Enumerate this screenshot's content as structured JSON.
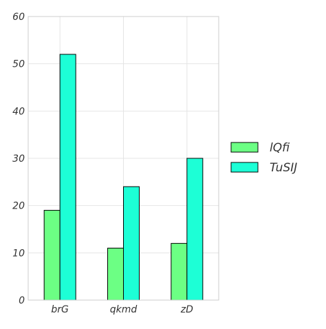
{
  "chart_data": {
    "type": "bar",
    "title": "",
    "xlabel": "",
    "ylabel": "",
    "categories": [
      "brG",
      "qkmd",
      "zD"
    ],
    "series": [
      {
        "name": "lQfi",
        "values": [
          19,
          11,
          12
        ],
        "color": "#6cff84"
      },
      {
        "name": "TuSIJ",
        "values": [
          52,
          24,
          30
        ],
        "color": "#1dffd6"
      }
    ],
    "ylim": [
      0,
      60
    ],
    "yticks": [
      "0",
      "10",
      "20",
      "30",
      "40",
      "50",
      "60"
    ],
    "grid": true,
    "legend": "right"
  }
}
